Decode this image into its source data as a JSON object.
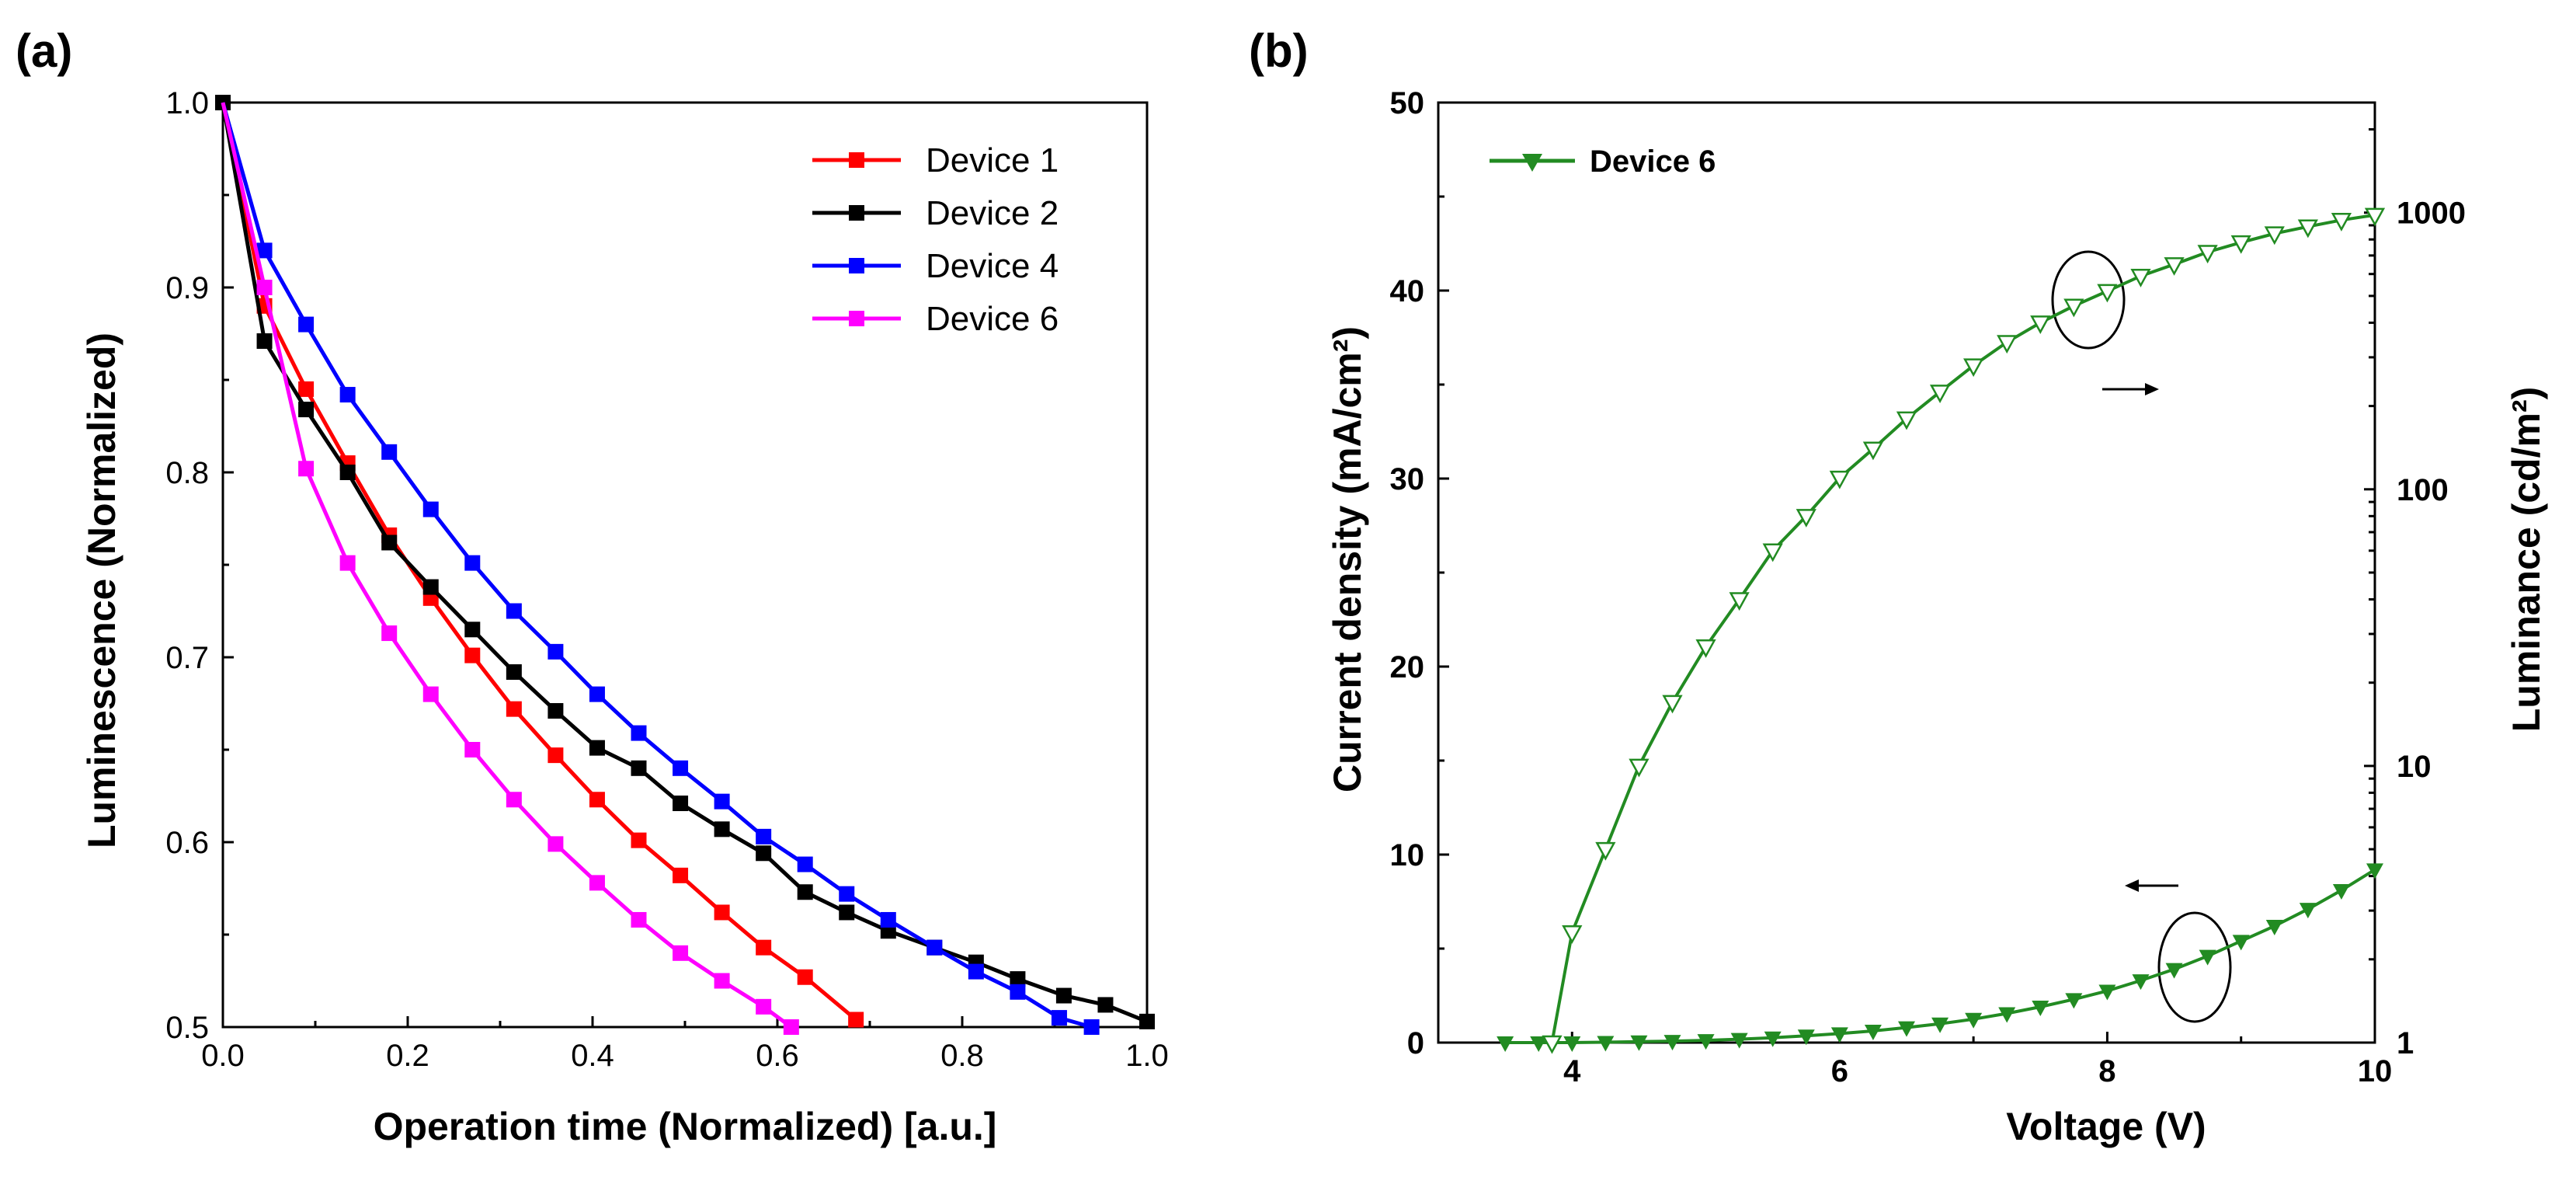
{
  "chart_data": [
    {
      "type": "line",
      "panel_label": "(a)",
      "xlabel": "Operation time (Normalized) [a.u.]",
      "ylabel": "Luminescence (Normalized)",
      "xlim": [
        0.0,
        1.0
      ],
      "ylim": [
        0.5,
        1.0
      ],
      "xticks": [
        "0.0",
        "0.2",
        "0.4",
        "0.6",
        "0.8",
        "1.0"
      ],
      "yticks": [
        "0.5",
        "0.6",
        "0.7",
        "0.8",
        "0.9",
        "1.0"
      ],
      "legend_position": "top-right",
      "series": [
        {
          "name": "Device 1",
          "color": "#ff0000",
          "x": [
            0.0,
            0.045,
            0.09,
            0.135,
            0.18,
            0.225,
            0.27,
            0.315,
            0.36,
            0.405,
            0.45,
            0.495,
            0.54,
            0.585,
            0.63,
            0.685
          ],
          "y": [
            1.0,
            0.89,
            0.845,
            0.805,
            0.766,
            0.732,
            0.701,
            0.672,
            0.647,
            0.623,
            0.601,
            0.582,
            0.562,
            0.543,
            0.527,
            0.504
          ]
        },
        {
          "name": "Device 2",
          "color": "#000000",
          "x": [
            0.0,
            0.045,
            0.09,
            0.135,
            0.18,
            0.225,
            0.27,
            0.315,
            0.36,
            0.405,
            0.45,
            0.495,
            0.54,
            0.585,
            0.63,
            0.675,
            0.72,
            0.77,
            0.815,
            0.86,
            0.91,
            0.955,
            1.0
          ],
          "y": [
            1.0,
            0.871,
            0.834,
            0.8,
            0.762,
            0.738,
            0.715,
            0.692,
            0.671,
            0.651,
            0.64,
            0.621,
            0.607,
            0.594,
            0.573,
            0.562,
            0.552,
            0.543,
            0.535,
            0.526,
            0.517,
            0.512,
            0.503
          ]
        },
        {
          "name": "Device 4",
          "color": "#0000ff",
          "x": [
            0.0,
            0.045,
            0.09,
            0.135,
            0.18,
            0.225,
            0.27,
            0.315,
            0.36,
            0.405,
            0.45,
            0.495,
            0.54,
            0.585,
            0.63,
            0.675,
            0.72,
            0.77,
            0.815,
            0.86,
            0.905,
            0.94
          ],
          "y": [
            1.0,
            0.92,
            0.88,
            0.842,
            0.811,
            0.78,
            0.751,
            0.725,
            0.703,
            0.68,
            0.659,
            0.64,
            0.622,
            0.603,
            0.588,
            0.572,
            0.558,
            0.543,
            0.53,
            0.519,
            0.505,
            0.5
          ]
        },
        {
          "name": "Device 6",
          "color": "#ff00ff",
          "x": [
            0.0,
            0.045,
            0.09,
            0.135,
            0.18,
            0.225,
            0.27,
            0.315,
            0.36,
            0.405,
            0.45,
            0.495,
            0.54,
            0.585,
            0.615
          ],
          "y": [
            1.0,
            0.9,
            0.802,
            0.751,
            0.713,
            0.68,
            0.65,
            0.623,
            0.599,
            0.578,
            0.558,
            0.54,
            0.525,
            0.511,
            0.5
          ]
        }
      ]
    },
    {
      "type": "line",
      "panel_label": "(b)",
      "xlabel": "Voltage (V)",
      "ylabel_left": "Current density (mA/cm²)",
      "ylabel_right": "Luminance (cd/m²)",
      "xlim": [
        3.0,
        10.0
      ],
      "ylim_left": [
        0,
        50
      ],
      "ylim_right_log": [
        1,
        2500
      ],
      "xticks": [
        "4",
        "6",
        "8",
        "10"
      ],
      "yticks_left": [
        "0",
        "10",
        "20",
        "30",
        "40",
        "50"
      ],
      "yticks_right": [
        "1",
        "10",
        "100",
        "1000"
      ],
      "legend_position": "top-left",
      "legend": "Device 6",
      "color": "#228b22",
      "current_density": {
        "marker": "filled down-triangle",
        "axis": "left",
        "x": [
          3.5,
          3.75,
          4.0,
          4.25,
          4.5,
          4.75,
          5.0,
          5.25,
          5.5,
          5.75,
          6.0,
          6.25,
          6.5,
          6.75,
          7.0,
          7.25,
          7.5,
          7.75,
          8.0,
          8.25,
          8.5,
          8.75,
          9.0,
          9.25,
          9.5,
          9.75,
          10.0
        ],
        "y": [
          0.0,
          0.0,
          0.0,
          0.02,
          0.05,
          0.08,
          0.12,
          0.18,
          0.26,
          0.36,
          0.48,
          0.62,
          0.8,
          1.0,
          1.25,
          1.55,
          1.9,
          2.3,
          2.75,
          3.3,
          3.9,
          4.6,
          5.4,
          6.2,
          7.1,
          8.1,
          9.2
        ]
      },
      "luminance": {
        "marker": "open down-triangle",
        "axis": "right",
        "x": [
          3.85,
          4.0,
          4.25,
          4.5,
          4.75,
          5.0,
          5.25,
          5.5,
          5.75,
          6.0,
          6.25,
          6.5,
          6.75,
          7.0,
          7.25,
          7.5,
          7.75,
          8.0,
          8.25,
          8.5,
          8.75,
          9.0,
          9.25,
          9.5,
          9.75,
          10.0
        ],
        "y": [
          1.0,
          2.5,
          5.0,
          10.0,
          17.0,
          27.0,
          40.0,
          60.0,
          80.0,
          110.0,
          140.0,
          180.0,
          225.0,
          280.0,
          340.0,
          400.0,
          460.0,
          520.0,
          590.0,
          650.0,
          720.0,
          780.0,
          840.0,
          890.0,
          940.0,
          980.0
        ]
      },
      "annotations": [
        {
          "target": "luminance",
          "arrow_direction": "right"
        },
        {
          "target": "current_density",
          "arrow_direction": "left"
        }
      ]
    }
  ]
}
